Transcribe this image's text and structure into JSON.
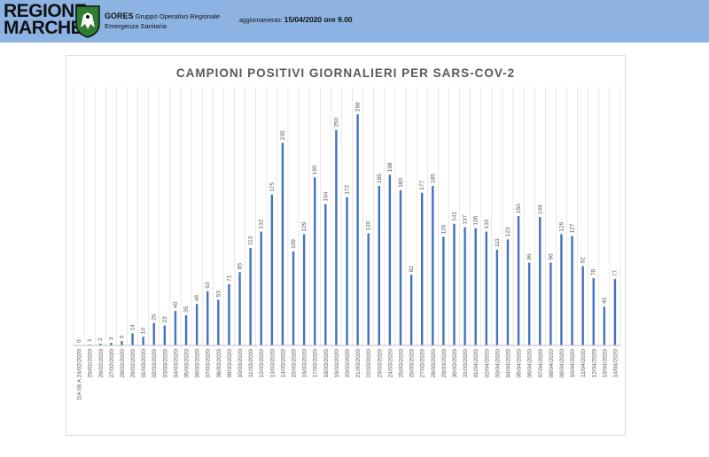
{
  "header": {
    "logo_text": [
      "REGIONE",
      "MARCHE"
    ],
    "logo_icon": "regional-emblem",
    "gores_name": "GORES",
    "gores_desc_1": "Gruppo Operativo Regionale",
    "gores_desc_2": "Emergenza Sanitaria",
    "update_label": "aggiornamento:",
    "update_value": "15/04/2020 ore 9.00"
  },
  "colors": {
    "banner": "#8db3e2",
    "bar": "#4472c4",
    "gridline": "#d9d9d9"
  },
  "chart_data": {
    "type": "bar",
    "title": "CAMPIONI POSITIVI GIORNALIERI PER SARS-COV-2",
    "xlabel": "",
    "ylabel": "",
    "grid": true,
    "legend": "none",
    "categories": [
      "DA 06 A 24/02/2020",
      "25/02/2020",
      "26/02/2020",
      "27/02/2020",
      "28/02/2020",
      "29/02/2020",
      "01/03/2020",
      "02/03/2020",
      "03/03/2020",
      "04/03/2020",
      "05/03/2020",
      "06/03/2020",
      "07/03/2020",
      "08/03/2020",
      "09/03/2020",
      "10/03/2020",
      "11/03/2020",
      "12/03/2020",
      "13/03/2020",
      "14/03/2020",
      "15/03/2020",
      "16/03/2020",
      "17/03/2020",
      "18/03/2020",
      "19/03/2020",
      "20/03/2020",
      "21/03/2020",
      "22/03/2020",
      "23/03/2020",
      "24/03/2020",
      "25/03/2020",
      "26/03/2020",
      "27/03/2020",
      "28/03/2020",
      "29/03/2020",
      "30/03/2020",
      "31/03/2020",
      "01/04/2020",
      "02/04/2020",
      "03/04/2020",
      "04/04/2020",
      "05/04/2020",
      "06/04/2020",
      "07/04/2020",
      "08/04/2020",
      "09/04/2020",
      "10/04/2020",
      "11/04/2020",
      "12/04/2020",
      "13/04/2020",
      "14/04/2020"
    ],
    "values": [
      0,
      1,
      2,
      3,
      5,
      14,
      10,
      26,
      23,
      40,
      35,
      48,
      63,
      53,
      71,
      85,
      113,
      132,
      175,
      235,
      109,
      129,
      195,
      164,
      250,
      172,
      268,
      130,
      185,
      198,
      180,
      82,
      177,
      185,
      126,
      141,
      137,
      136,
      132,
      111,
      123,
      150,
      96,
      149,
      96,
      129,
      127,
      92,
      78,
      45,
      77
    ],
    "ylim": [
      0,
      300
    ]
  }
}
